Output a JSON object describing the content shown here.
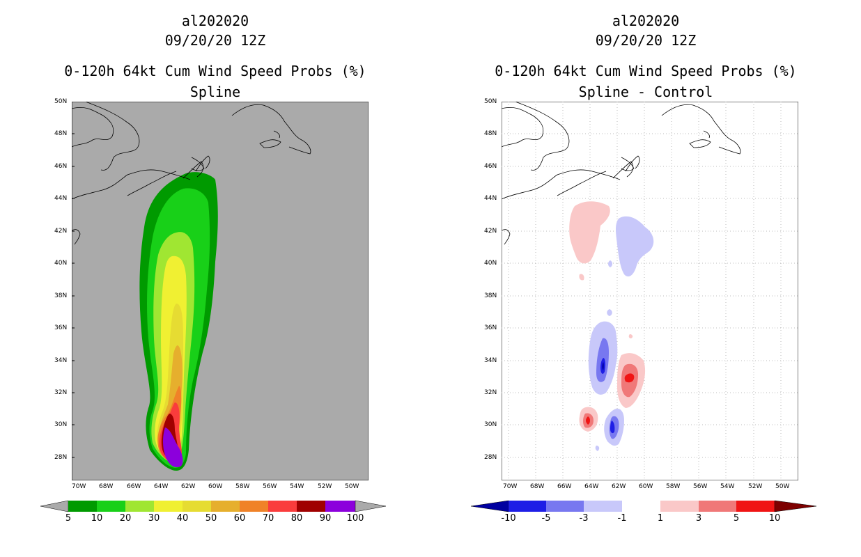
{
  "left_panel": {
    "storm_id": "al202020",
    "datetime": "09/20/20 12Z",
    "product": "0-120h 64kt Cum Wind Speed Probs (%)",
    "subtitle": "Spline"
  },
  "right_panel": {
    "storm_id": "al202020",
    "datetime": "09/20/20 12Z",
    "product": "0-120h 64kt Cum Wind Speed Probs (%)",
    "subtitle": "Spline - Control"
  },
  "axes": {
    "lat_labels": [
      "50N",
      "48N",
      "46N",
      "44N",
      "42N",
      "40N",
      "38N",
      "36N",
      "34N",
      "32N",
      "30N",
      "28N"
    ],
    "lon_labels": [
      "70W",
      "68W",
      "66W",
      "64W",
      "62W",
      "60W",
      "58W",
      "56W",
      "54W",
      "52W",
      "50W"
    ]
  },
  "left_colorbar": {
    "labels": [
      "5",
      "10",
      "20",
      "30",
      "40",
      "50",
      "60",
      "70",
      "80",
      "90",
      "100"
    ],
    "colors": [
      "#009a00",
      "#18d018",
      "#a0e632",
      "#f0f032",
      "#e6dc32",
      "#e6af2d",
      "#f08228",
      "#fa3c3c",
      "#a00000",
      "#8c00dc"
    ]
  },
  "right_colorbar": {
    "labels": [
      "-10",
      "-5",
      "-3",
      "-1",
      "1",
      "3",
      "5",
      "10"
    ],
    "colors": [
      "#0000a0",
      "#1e1ee6",
      "#7878f0",
      "#c8c8fa",
      "#ffffff",
      "#fac8c8",
      "#f07878",
      "#f01414",
      "#7d0000"
    ]
  },
  "colors": {
    "map_gray": "#aaaaaa",
    "land_line": "#000000",
    "grid": "#bbbbbb"
  }
}
